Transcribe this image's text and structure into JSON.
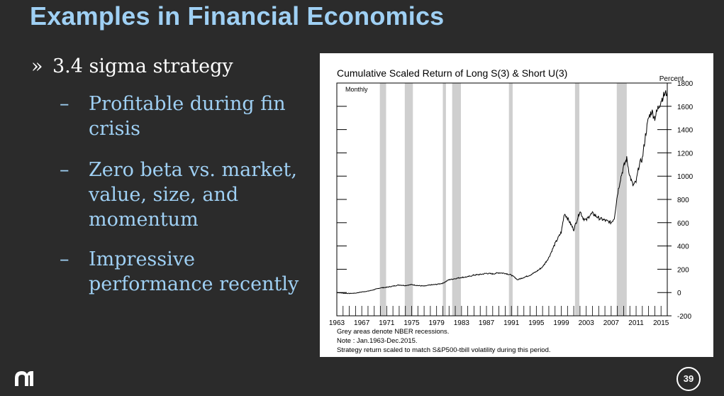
{
  "slide": {
    "title": "Examples in Financial Economics",
    "bullet": {
      "marker": "»",
      "text": "3.4 sigma strategy"
    },
    "subbullets": [
      {
        "marker": "–",
        "text": "Profitable during fin crisis"
      },
      {
        "marker": "–",
        "text": "Zero beta vs. market, value, size, and momentum"
      },
      {
        "marker": "–",
        "text": "Impressive performance recently"
      }
    ],
    "page_number": "39",
    "logo_icon": "aa-logo-icon"
  },
  "colors": {
    "background": "#2b2b2b",
    "title": "#9fd0f4",
    "recession_band": "#cfcfcf",
    "line": "#000000"
  },
  "chart_data": {
    "type": "line",
    "title": "Cumulative Scaled Return of Long S(3) & Short U(3)",
    "ylabel": "Percent",
    "frequency_label": "Monthly",
    "ylim": [
      -200,
      1800
    ],
    "yticks": [
      1800,
      1600,
      1400,
      1200,
      1000,
      800,
      600,
      400,
      200,
      0,
      -200
    ],
    "xlim": [
      1963,
      2016
    ],
    "xticks": [
      1963,
      1967,
      1971,
      1975,
      1979,
      1983,
      1987,
      1991,
      1995,
      1999,
      2003,
      2007,
      2011,
      2015
    ],
    "grid": false,
    "recessions": [
      [
        1969.9,
        1970.9
      ],
      [
        1973.9,
        1975.2
      ],
      [
        1980.0,
        1980.5
      ],
      [
        1981.5,
        1982.9
      ],
      [
        1990.6,
        1991.2
      ],
      [
        2001.2,
        2001.9
      ],
      [
        2007.9,
        2009.5
      ]
    ],
    "series": [
      {
        "x": [
          1963,
          1964,
          1965,
          1966,
          1967,
          1968,
          1969,
          1970,
          1971,
          1972,
          1973,
          1974,
          1975,
          1976,
          1977,
          1978,
          1979,
          1980,
          1981,
          1982,
          1983,
          1984,
          1985,
          1986,
          1987,
          1988,
          1989,
          1990,
          1991,
          1992,
          1993,
          1994,
          1995,
          1996,
          1997,
          1998,
          1999,
          1999.5,
          2000,
          2000.5,
          2001,
          2001.5,
          2002,
          2002.5,
          2003,
          2003.5,
          2004,
          2005,
          2006,
          2007,
          2007.5,
          2008,
          2008.5,
          2009,
          2009.5,
          2010,
          2010.5,
          2011,
          2011.5,
          2012,
          2012.5,
          2013,
          2013.5,
          2014,
          2014.5,
          2015,
          2015.5,
          2016
        ],
        "y": [
          0,
          -5,
          -8,
          -5,
          5,
          12,
          25,
          40,
          45,
          55,
          65,
          60,
          68,
          60,
          55,
          65,
          70,
          80,
          110,
          120,
          130,
          135,
          150,
          155,
          165,
          160,
          170,
          165,
          150,
          110,
          130,
          150,
          180,
          220,
          300,
          420,
          520,
          680,
          640,
          590,
          540,
          620,
          700,
          640,
          620,
          660,
          680,
          640,
          620,
          600,
          640,
          840,
          980,
          1080,
          1150,
          1000,
          920,
          950,
          1100,
          1150,
          1350,
          1500,
          1560,
          1500,
          1580,
          1650,
          1700,
          1720
        ]
      }
    ],
    "notes": [
      "Grey areas denote NBER recessions.",
      "Note : Jan.1963-Dec.2015.",
      "Strategy return scaled to match S&P500-tbill volatility during this period."
    ]
  }
}
